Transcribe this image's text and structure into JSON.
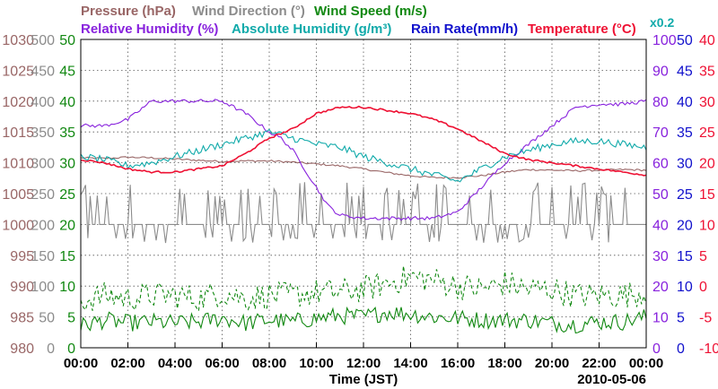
{
  "chart_data": {
    "type": "line",
    "title": "",
    "date": "2010-05-06",
    "xlabel": "Time (JST)",
    "x_ticks": [
      "00:00",
      "02:00",
      "04:00",
      "06:00",
      "08:00",
      "10:00",
      "12:00",
      "14:00",
      "16:00",
      "18:00",
      "20:00",
      "22:00",
      "00:00"
    ],
    "xlim_hours": [
      0,
      24
    ],
    "legend_row1": [
      {
        "label": "Pressure (hPa)",
        "color": "#996666"
      },
      {
        "label": "Wind Direction (°)",
        "color": "#8c8c8c"
      },
      {
        "label": "Wind Speed (m/s)",
        "color": "#118811"
      }
    ],
    "legend_row2": [
      {
        "label": "Relative Humidity (%)",
        "color": "#8822dd"
      },
      {
        "label": "Absolute Humidity (g/m³)",
        "color": "#11aaaa"
      },
      {
        "label": "Rain Rate(mm/h)",
        "color": "#1111cc"
      },
      {
        "label": "Temperature (°C)",
        "color": "#ee1133"
      }
    ],
    "abs_humidity_scale_note": "x0.2",
    "axes": {
      "pressure": {
        "color": "#996666",
        "ticks": [
          980,
          985,
          990,
          995,
          1000,
          1005,
          1010,
          1015,
          1020,
          1025,
          1030
        ],
        "range": [
          980,
          1030
        ]
      },
      "wind_direction": {
        "color": "#8c8c8c",
        "ticks": [
          0,
          50,
          100,
          150,
          200,
          250,
          300,
          350,
          400,
          450,
          500
        ],
        "range": [
          0,
          500
        ]
      },
      "wind_speed": {
        "color": "#118811",
        "ticks": [
          0,
          5,
          10,
          15,
          20,
          25,
          30,
          35,
          40,
          45,
          50
        ],
        "range": [
          0,
          50
        ]
      },
      "relative_humidity": {
        "color": "#8822dd",
        "ticks": [
          0,
          10,
          20,
          30,
          40,
          50,
          60,
          70,
          80,
          90,
          100
        ],
        "range": [
          0,
          100
        ]
      },
      "rain_rate": {
        "color": "#1111cc",
        "ticks": [
          0,
          5,
          10,
          15,
          20,
          25,
          30,
          35,
          40,
          45,
          50
        ],
        "range": [
          0,
          50
        ]
      },
      "temperature": {
        "color": "#ee1133",
        "ticks": [
          -10,
          -5,
          0,
          5,
          10,
          15,
          20,
          25,
          30,
          35,
          40
        ],
        "range": [
          -10,
          40
        ]
      }
    },
    "series": [
      {
        "name": "Pressure (hPa)",
        "axis": "pressure",
        "style": "solid",
        "x": [
          0,
          1,
          2,
          3,
          4,
          5,
          6,
          7,
          8,
          9,
          10,
          11,
          12,
          13,
          14,
          15,
          16,
          17,
          18,
          19,
          20,
          21,
          22,
          23,
          24
        ],
        "values": [
          1010.8,
          1010.7,
          1010.9,
          1010.8,
          1010.6,
          1010.4,
          1010.2,
          1010.3,
          1010.3,
          1010.1,
          1009.8,
          1009.5,
          1009.0,
          1008.4,
          1007.9,
          1007.6,
          1007.6,
          1007.9,
          1008.5,
          1008.9,
          1008.8,
          1008.7,
          1008.8,
          1008.9,
          1008.8
        ]
      },
      {
        "name": "Wind Direction (°)",
        "axis": "wind_direction",
        "style": "solid",
        "baseline": 200,
        "spike_high": 270,
        "spike_low": 180
      },
      {
        "name": "Wind Speed (m/s) mean",
        "axis": "wind_speed",
        "style": "solid",
        "x": [
          0,
          1,
          2,
          3,
          4,
          5,
          6,
          7,
          8,
          9,
          10,
          11,
          12,
          13,
          14,
          15,
          16,
          17,
          18,
          19,
          20,
          21,
          22,
          23,
          24
        ],
        "values": [
          3.5,
          4.5,
          4.0,
          4.2,
          4.0,
          4.2,
          4.8,
          4.0,
          4.5,
          4.2,
          4.8,
          5.2,
          5.0,
          5.8,
          5.5,
          5.0,
          4.8,
          4.5,
          4.5,
          4.5,
          4.0,
          3.8,
          4.2,
          4.2,
          5.0
        ]
      },
      {
        "name": "Wind Speed (m/s) gust",
        "axis": "wind_speed",
        "style": "dashed",
        "x": [
          0,
          1,
          2,
          3,
          4,
          5,
          6,
          7,
          8,
          9,
          10,
          11,
          12,
          13,
          14,
          15,
          16,
          17,
          18,
          19,
          20,
          21,
          22,
          23,
          24
        ],
        "values": [
          7.5,
          8.5,
          8.0,
          8.5,
          8.5,
          8.0,
          9.0,
          8.0,
          8.5,
          8.5,
          9.0,
          9.0,
          9.5,
          10.5,
          11.5,
          11.0,
          10.0,
          9.5,
          10.5,
          9.5,
          9.5,
          8.5,
          8.5,
          8.5,
          9.0
        ]
      },
      {
        "name": "Relative Humidity (%)",
        "axis": "relative_humidity",
        "style": "solid",
        "x": [
          0,
          1,
          2,
          3,
          4,
          5,
          6,
          7,
          8,
          8.5,
          9,
          9.5,
          10,
          10.5,
          11,
          12,
          13,
          14,
          15,
          16,
          17,
          18,
          19,
          20,
          21,
          22,
          23,
          24
        ],
        "values": [
          72,
          72,
          74,
          80,
          80,
          80,
          80,
          76,
          70,
          68,
          64,
          58,
          52,
          46,
          43,
          42,
          42,
          42,
          42,
          44,
          52,
          60,
          66,
          72,
          78,
          79,
          79,
          80
        ]
      },
      {
        "name": "Absolute Humidity (g/m³)",
        "axis": "relative_humidity",
        "style": "solid",
        "x": [
          0,
          1,
          2,
          3,
          4,
          5,
          6,
          7,
          8,
          9,
          10,
          11,
          12,
          13,
          14,
          15,
          16,
          17,
          18,
          19,
          20,
          21,
          22,
          23,
          24
        ],
        "values": [
          62,
          61,
          59,
          60,
          62,
          64,
          66,
          68,
          70,
          68,
          66,
          65,
          62,
          60,
          58,
          56,
          54,
          58,
          62,
          64,
          66,
          67,
          67,
          66,
          65
        ]
      },
      {
        "name": "Rain Rate(mm/h)",
        "axis": "rain_rate",
        "style": "solid",
        "x": [
          0,
          24
        ],
        "values": [
          0,
          0
        ]
      },
      {
        "name": "Temperature (°C)",
        "axis": "temperature",
        "style": "solid",
        "x": [
          0,
          1,
          2,
          3,
          4,
          5,
          6,
          7,
          8,
          9,
          10,
          11,
          12,
          13,
          14,
          15,
          16,
          17,
          18,
          19,
          20,
          21,
          22,
          23,
          24
        ],
        "values": [
          20.5,
          20.0,
          19.0,
          18.5,
          18.5,
          19.0,
          19.5,
          21.5,
          24.0,
          25.5,
          28.0,
          29.0,
          29.0,
          28.5,
          28.0,
          27.0,
          25.5,
          23.5,
          21.5,
          20.5,
          20.0,
          19.5,
          19.0,
          18.5,
          18.0
        ]
      }
    ]
  }
}
